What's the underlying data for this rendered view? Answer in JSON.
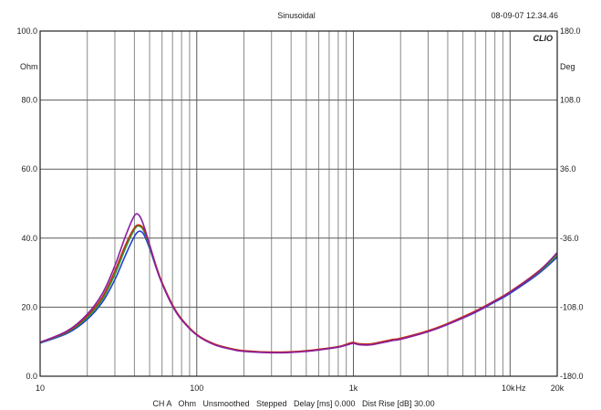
{
  "header": {
    "mode": "Sinusoidal",
    "datetime": "08-09-07 12.34.46",
    "brand": "CLIO"
  },
  "footer": {
    "status": "CH A   Ohm   Unsmoothed   Stepped   Delay [ms] 0.000   Dist Rise [dB] 30.00"
  },
  "chart_data": {
    "type": "line",
    "x_scale": "log",
    "xlim": [
      10,
      20000
    ],
    "ylim": [
      0,
      100
    ],
    "y2lim": [
      -180,
      180
    ],
    "ylabel": "Ohm",
    "y2label": "Deg",
    "xunit": "Hz",
    "x_ticks": [
      "10",
      "100",
      "1k",
      "10k",
      "20k"
    ],
    "y_ticks": [
      "0.0",
      "20.0",
      "40.0",
      "60.0",
      "80.0",
      "100.0"
    ],
    "y2_ticks": [
      "-180.0",
      "-108.0",
      "-36.0",
      "36.0",
      "108.0",
      "180.0"
    ],
    "grid": true,
    "x": [
      10,
      15,
      20,
      25,
      30,
      35,
      40,
      43,
      46,
      50,
      55,
      60,
      70,
      80,
      100,
      130,
      170,
      200,
      300,
      400,
      500,
      600,
      800,
      950,
      1000,
      1100,
      1300,
      1600,
      1800,
      2000,
      3000,
      4000,
      6000,
      8000,
      10000,
      15000,
      20000
    ],
    "series": [
      {
        "color": "#1f3fd0",
        "values": [
          9.6,
          12.5,
          16.5,
          21.5,
          28.0,
          35.0,
          40.5,
          42.0,
          41.0,
          37.0,
          31.5,
          27.0,
          20.5,
          16.5,
          12.0,
          9.2,
          7.8,
          7.3,
          6.9,
          7.0,
          7.3,
          7.7,
          8.5,
          9.4,
          9.6,
          9.2,
          9.2,
          10.0,
          10.5,
          10.8,
          13.0,
          15.0,
          18.5,
          21.5,
          24.0,
          29.5,
          34.5
        ]
      },
      {
        "color": "#2a9a2a",
        "values": [
          9.7,
          12.8,
          17.0,
          22.3,
          29.5,
          37.0,
          42.5,
          43.5,
          42.0,
          37.5,
          31.5,
          27.0,
          20.5,
          16.5,
          12.0,
          9.2,
          7.8,
          7.3,
          6.9,
          7.0,
          7.3,
          7.7,
          8.5,
          9.5,
          9.7,
          9.3,
          9.3,
          10.1,
          10.6,
          10.9,
          13.1,
          15.2,
          18.7,
          21.7,
          24.3,
          29.8,
          35.0
        ]
      },
      {
        "color": "#c0301a",
        "values": [
          9.8,
          13.0,
          17.5,
          23.0,
          30.5,
          38.0,
          43.0,
          43.8,
          42.5,
          38.0,
          32.0,
          27.2,
          20.7,
          16.6,
          12.1,
          9.3,
          7.9,
          7.4,
          7.0,
          7.1,
          7.4,
          7.8,
          8.6,
          9.6,
          9.8,
          9.4,
          9.4,
          10.2,
          10.7,
          11.0,
          13.2,
          15.3,
          18.9,
          21.9,
          24.5,
          30.2,
          35.6
        ]
      },
      {
        "color": "#8a1e9e",
        "values": [
          9.8,
          13.2,
          18.0,
          24.0,
          32.0,
          40.5,
          46.5,
          46.5,
          43.5,
          38.0,
          31.5,
          26.8,
          20.3,
          16.3,
          11.9,
          9.1,
          7.7,
          7.2,
          6.8,
          6.9,
          7.2,
          7.6,
          8.4,
          9.3,
          9.5,
          9.1,
          9.1,
          9.9,
          10.4,
          10.7,
          12.9,
          15.0,
          18.6,
          21.7,
          24.3,
          30.0,
          35.8
        ]
      }
    ]
  }
}
